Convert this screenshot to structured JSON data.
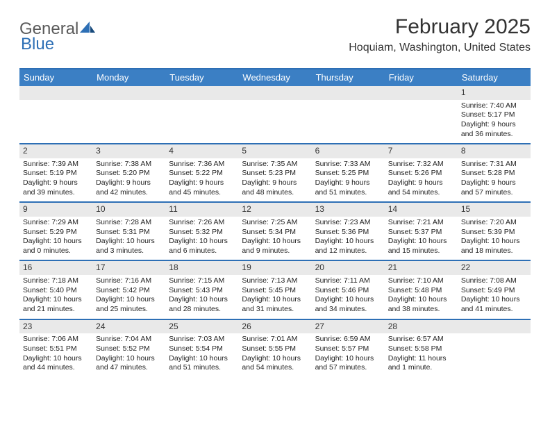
{
  "logo": {
    "word1": "General",
    "word2": "Blue"
  },
  "title": "February 2025",
  "location": "Hoquiam, Washington, United States",
  "colors": {
    "header_bar": "#3b7fc4",
    "rule": "#2d6fb5",
    "daynum_bg": "#e9e9e9",
    "text": "#222222",
    "logo_gray": "#5a5a5a",
    "logo_blue": "#2d6fb5"
  },
  "dow": [
    "Sunday",
    "Monday",
    "Tuesday",
    "Wednesday",
    "Thursday",
    "Friday",
    "Saturday"
  ],
  "weeks": [
    [
      {
        "n": "",
        "lines": []
      },
      {
        "n": "",
        "lines": []
      },
      {
        "n": "",
        "lines": []
      },
      {
        "n": "",
        "lines": []
      },
      {
        "n": "",
        "lines": []
      },
      {
        "n": "",
        "lines": []
      },
      {
        "n": "1",
        "lines": [
          "Sunrise: 7:40 AM",
          "Sunset: 5:17 PM",
          "Daylight: 9 hours and 36 minutes."
        ]
      }
    ],
    [
      {
        "n": "2",
        "lines": [
          "Sunrise: 7:39 AM",
          "Sunset: 5:19 PM",
          "Daylight: 9 hours and 39 minutes."
        ]
      },
      {
        "n": "3",
        "lines": [
          "Sunrise: 7:38 AM",
          "Sunset: 5:20 PM",
          "Daylight: 9 hours and 42 minutes."
        ]
      },
      {
        "n": "4",
        "lines": [
          "Sunrise: 7:36 AM",
          "Sunset: 5:22 PM",
          "Daylight: 9 hours and 45 minutes."
        ]
      },
      {
        "n": "5",
        "lines": [
          "Sunrise: 7:35 AM",
          "Sunset: 5:23 PM",
          "Daylight: 9 hours and 48 minutes."
        ]
      },
      {
        "n": "6",
        "lines": [
          "Sunrise: 7:33 AM",
          "Sunset: 5:25 PM",
          "Daylight: 9 hours and 51 minutes."
        ]
      },
      {
        "n": "7",
        "lines": [
          "Sunrise: 7:32 AM",
          "Sunset: 5:26 PM",
          "Daylight: 9 hours and 54 minutes."
        ]
      },
      {
        "n": "8",
        "lines": [
          "Sunrise: 7:31 AM",
          "Sunset: 5:28 PM",
          "Daylight: 9 hours and 57 minutes."
        ]
      }
    ],
    [
      {
        "n": "9",
        "lines": [
          "Sunrise: 7:29 AM",
          "Sunset: 5:29 PM",
          "Daylight: 10 hours and 0 minutes."
        ]
      },
      {
        "n": "10",
        "lines": [
          "Sunrise: 7:28 AM",
          "Sunset: 5:31 PM",
          "Daylight: 10 hours and 3 minutes."
        ]
      },
      {
        "n": "11",
        "lines": [
          "Sunrise: 7:26 AM",
          "Sunset: 5:32 PM",
          "Daylight: 10 hours and 6 minutes."
        ]
      },
      {
        "n": "12",
        "lines": [
          "Sunrise: 7:25 AM",
          "Sunset: 5:34 PM",
          "Daylight: 10 hours and 9 minutes."
        ]
      },
      {
        "n": "13",
        "lines": [
          "Sunrise: 7:23 AM",
          "Sunset: 5:36 PM",
          "Daylight: 10 hours and 12 minutes."
        ]
      },
      {
        "n": "14",
        "lines": [
          "Sunrise: 7:21 AM",
          "Sunset: 5:37 PM",
          "Daylight: 10 hours and 15 minutes."
        ]
      },
      {
        "n": "15",
        "lines": [
          "Sunrise: 7:20 AM",
          "Sunset: 5:39 PM",
          "Daylight: 10 hours and 18 minutes."
        ]
      }
    ],
    [
      {
        "n": "16",
        "lines": [
          "Sunrise: 7:18 AM",
          "Sunset: 5:40 PM",
          "Daylight: 10 hours and 21 minutes."
        ]
      },
      {
        "n": "17",
        "lines": [
          "Sunrise: 7:16 AM",
          "Sunset: 5:42 PM",
          "Daylight: 10 hours and 25 minutes."
        ]
      },
      {
        "n": "18",
        "lines": [
          "Sunrise: 7:15 AM",
          "Sunset: 5:43 PM",
          "Daylight: 10 hours and 28 minutes."
        ]
      },
      {
        "n": "19",
        "lines": [
          "Sunrise: 7:13 AM",
          "Sunset: 5:45 PM",
          "Daylight: 10 hours and 31 minutes."
        ]
      },
      {
        "n": "20",
        "lines": [
          "Sunrise: 7:11 AM",
          "Sunset: 5:46 PM",
          "Daylight: 10 hours and 34 minutes."
        ]
      },
      {
        "n": "21",
        "lines": [
          "Sunrise: 7:10 AM",
          "Sunset: 5:48 PM",
          "Daylight: 10 hours and 38 minutes."
        ]
      },
      {
        "n": "22",
        "lines": [
          "Sunrise: 7:08 AM",
          "Sunset: 5:49 PM",
          "Daylight: 10 hours and 41 minutes."
        ]
      }
    ],
    [
      {
        "n": "23",
        "lines": [
          "Sunrise: 7:06 AM",
          "Sunset: 5:51 PM",
          "Daylight: 10 hours and 44 minutes."
        ]
      },
      {
        "n": "24",
        "lines": [
          "Sunrise: 7:04 AM",
          "Sunset: 5:52 PM",
          "Daylight: 10 hours and 47 minutes."
        ]
      },
      {
        "n": "25",
        "lines": [
          "Sunrise: 7:03 AM",
          "Sunset: 5:54 PM",
          "Daylight: 10 hours and 51 minutes."
        ]
      },
      {
        "n": "26",
        "lines": [
          "Sunrise: 7:01 AM",
          "Sunset: 5:55 PM",
          "Daylight: 10 hours and 54 minutes."
        ]
      },
      {
        "n": "27",
        "lines": [
          "Sunrise: 6:59 AM",
          "Sunset: 5:57 PM",
          "Daylight: 10 hours and 57 minutes."
        ]
      },
      {
        "n": "28",
        "lines": [
          "Sunrise: 6:57 AM",
          "Sunset: 5:58 PM",
          "Daylight: 11 hours and 1 minute."
        ]
      },
      {
        "n": "",
        "lines": []
      }
    ]
  ]
}
